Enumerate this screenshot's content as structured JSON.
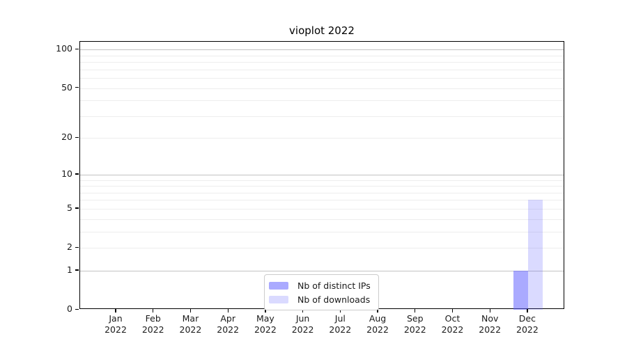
{
  "title": "vioplot 2022",
  "chart_data": {
    "type": "bar",
    "title": "vioplot 2022",
    "categories": [
      "Jan 2022",
      "Feb 2022",
      "Mar 2022",
      "Apr 2022",
      "May 2022",
      "Jun 2022",
      "Jul 2022",
      "Aug 2022",
      "Sep 2022",
      "Oct 2022",
      "Nov 2022",
      "Dec 2022"
    ],
    "series": [
      {
        "name": "Nb of distinct IPs",
        "color": "rgba(100,100,255,0.55)",
        "values": [
          0,
          0,
          0,
          0,
          0,
          0,
          0,
          0,
          0,
          0,
          0,
          1
        ]
      },
      {
        "name": "Nb of downloads",
        "color": "rgba(100,100,255,0.24)",
        "values": [
          0,
          0,
          0,
          0,
          0,
          0,
          0,
          0,
          0,
          0,
          0,
          6
        ]
      }
    ],
    "xlabel": "",
    "ylabel": "",
    "y_axis": {
      "scale": "log1p",
      "ticks": [
        0,
        1,
        2,
        5,
        10,
        20,
        50,
        100
      ],
      "minor_gridlines": [
        2,
        3,
        4,
        5,
        6,
        7,
        8,
        9,
        20,
        30,
        40,
        50,
        60,
        70,
        80,
        90
      ],
      "major_gridlines": [
        1,
        10,
        100
      ],
      "range": [
        0,
        115
      ]
    },
    "legend": {
      "position": "lower center",
      "entries": [
        "Nb of distinct IPs",
        "Nb of downloads"
      ]
    },
    "grid": true,
    "colors": {
      "grid_minor": "#ededed",
      "grid_major": "#c2c2c2",
      "spine": "#000000",
      "text": "#1a1a1a"
    }
  }
}
